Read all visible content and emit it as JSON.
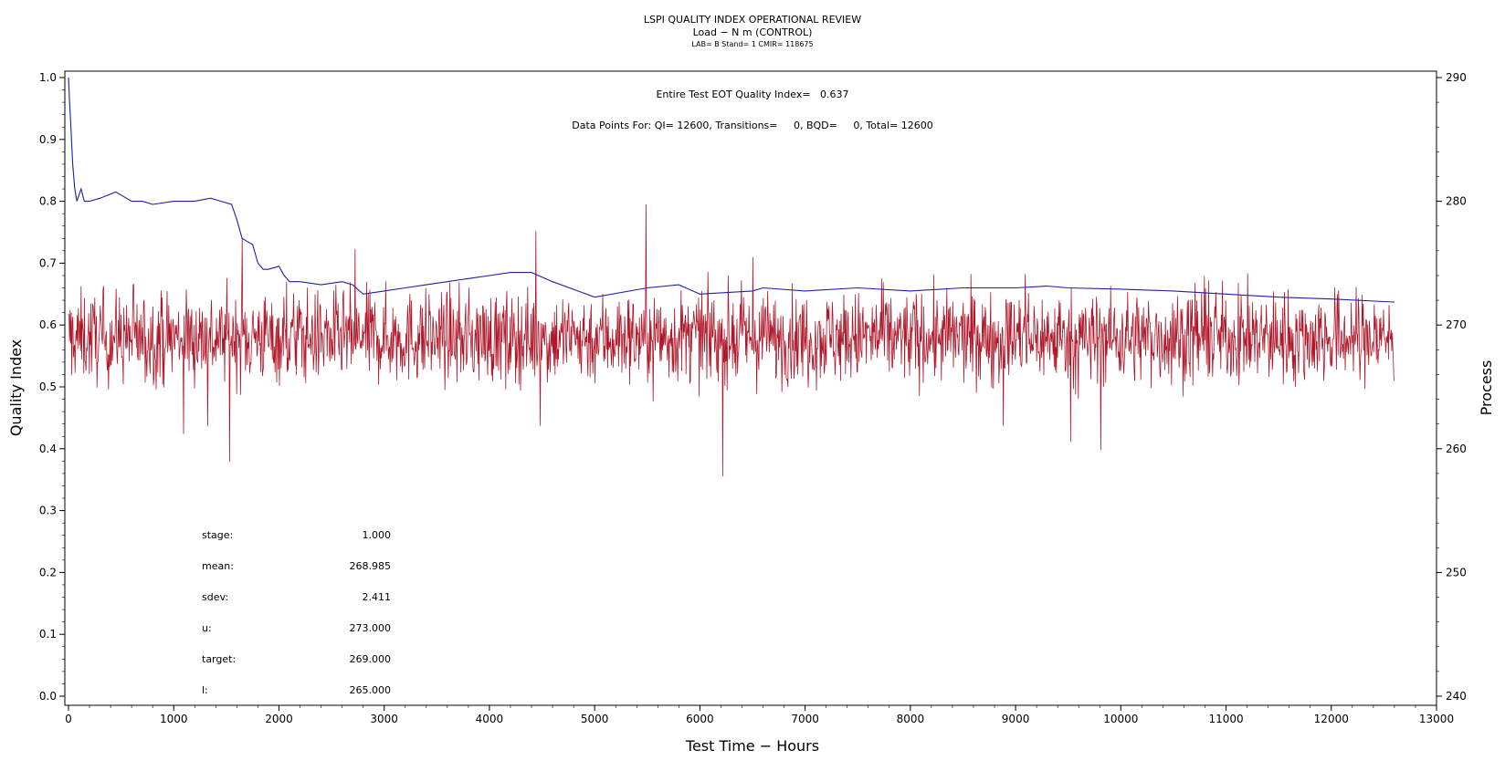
{
  "chart_data": {
    "type": "line",
    "title": "LSPI QUALITY INDEX OPERATIONAL REVIEW",
    "subtitle": "Load − N m (CONTROL)",
    "subtitle2": "LAB= B Stand= 1 CMIR= 118675",
    "xlabel": "Test Time − Hours",
    "ylabel": "Quality Index",
    "y2label": "Process",
    "xlim": [
      0,
      13000
    ],
    "ylim": [
      0.0,
      1.0
    ],
    "y2lim": [
      240,
      290
    ],
    "xticks": [
      "0",
      "1000",
      "2000",
      "3000",
      "4000",
      "5000",
      "6000",
      "7000",
      "8000",
      "9000",
      "10000",
      "11000",
      "12000",
      "13000"
    ],
    "xtick_values": [
      0,
      1000,
      2000,
      3000,
      4000,
      5000,
      6000,
      7000,
      8000,
      9000,
      10000,
      11000,
      12000,
      13000
    ],
    "yticks": [
      "0.0",
      "0.1",
      "0.2",
      "0.3",
      "0.4",
      "0.5",
      "0.6",
      "0.7",
      "0.8",
      "0.9",
      "1.0"
    ],
    "ytick_values": [
      0.0,
      0.1,
      0.2,
      0.3,
      0.4,
      0.5,
      0.6,
      0.7,
      0.8,
      0.9,
      1.0
    ],
    "y2ticks": [
      "240",
      "250",
      "260",
      "270",
      "280",
      "290"
    ],
    "y2tick_values": [
      240,
      250,
      260,
      270,
      280,
      290
    ],
    "header_lines": [
      "Entire Test EOT Quality Index=   0.637",
      "Data Points For: QI= 12600, Transitions=     0, BQD=     0, Total= 12600"
    ],
    "stats": [
      {
        "label": "stage:",
        "value": "1.000"
      },
      {
        "label": "mean:",
        "value": "268.985"
      },
      {
        "label": "sdev:",
        "value": "2.411"
      },
      {
        "label": "u:",
        "value": "273.000"
      },
      {
        "label": "target:",
        "value": "269.000"
      },
      {
        "label": "l:",
        "value": "265.000"
      }
    ],
    "series": [
      {
        "axis": "left",
        "color": "#1f1fa8",
        "x": [
          0,
          10,
          20,
          40,
          60,
          80,
          100,
          120,
          150,
          200,
          300,
          450,
          500,
          600,
          700,
          800,
          1000,
          1200,
          1350,
          1450,
          1550,
          1600,
          1650,
          1700,
          1750,
          1800,
          1850,
          1900,
          2000,
          2050,
          2100,
          2200,
          2400,
          2600,
          2700,
          2800,
          3000,
          3200,
          3400,
          3600,
          3800,
          4000,
          4200,
          4400,
          4600,
          5000,
          5500,
          5800,
          6000,
          6500,
          6600,
          7000,
          7500,
          8000,
          8500,
          9000,
          9300,
          9500,
          10000,
          10500,
          11000,
          11500,
          12000,
          12600
        ],
        "y": [
          1.0,
          0.96,
          0.93,
          0.86,
          0.82,
          0.8,
          0.81,
          0.82,
          0.8,
          0.8,
          0.805,
          0.815,
          0.81,
          0.8,
          0.8,
          0.795,
          0.8,
          0.8,
          0.805,
          0.8,
          0.795,
          0.77,
          0.74,
          0.735,
          0.73,
          0.7,
          0.69,
          0.69,
          0.695,
          0.68,
          0.67,
          0.67,
          0.665,
          0.67,
          0.665,
          0.65,
          0.655,
          0.66,
          0.665,
          0.67,
          0.675,
          0.68,
          0.685,
          0.685,
          0.67,
          0.645,
          0.66,
          0.665,
          0.65,
          0.655,
          0.66,
          0.655,
          0.66,
          0.655,
          0.66,
          0.66,
          0.663,
          0.66,
          0.658,
          0.655,
          0.65,
          0.645,
          0.642,
          0.637
        ]
      },
      {
        "axis": "right",
        "color": "#b0182a",
        "summary_mean": 268.985,
        "summary_sdev": 2.411,
        "x_range": [
          0,
          12600
        ],
        "points": 12600
      }
    ],
    "grid": false,
    "legend": "none"
  }
}
